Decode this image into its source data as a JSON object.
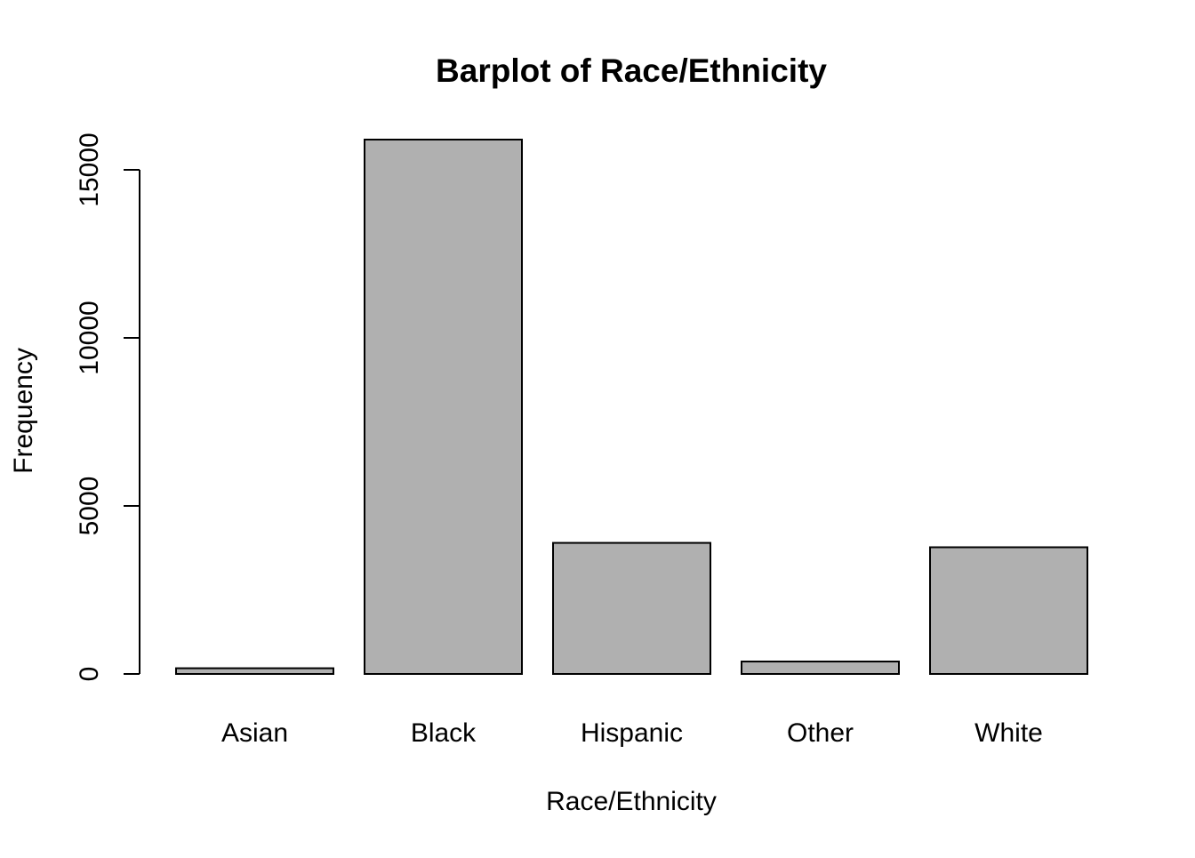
{
  "chart_data": {
    "type": "bar",
    "title": "Barplot of Race/Ethnicity",
    "xlabel": "Race/Ethnicity",
    "ylabel": "Frequency",
    "categories": [
      "Asian",
      "Black",
      "Hispanic",
      "Other",
      "White"
    ],
    "values": [
      170,
      15900,
      3900,
      370,
      3770
    ],
    "ylim": [
      0,
      15900
    ],
    "yticks": [
      0,
      5000,
      10000,
      15000
    ],
    "ytick_labels": [
      "0",
      "5000",
      "10000",
      "15000"
    ],
    "bar_color": "#b0b0b0",
    "grid": false,
    "legend": "none"
  }
}
